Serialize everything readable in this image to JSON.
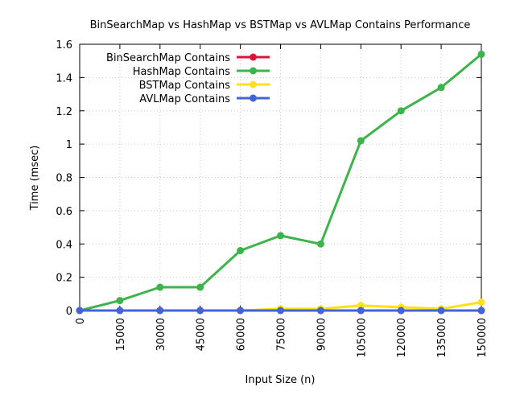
{
  "chart_data": {
    "type": "line",
    "title": "BinSearchMap vs HashMap vs BSTMap vs AVLMap Contains Performance",
    "xlabel": "Input Size (n)",
    "ylabel": "Time (msec)",
    "x": [
      0,
      15000,
      30000,
      45000,
      60000,
      75000,
      90000,
      105000,
      120000,
      135000,
      150000
    ],
    "x_tick_labels": [
      "0",
      "15000",
      "30000",
      "45000",
      "60000",
      "75000",
      "90000",
      "105000",
      "120000",
      "135000",
      "150000"
    ],
    "xlim": [
      0,
      150000
    ],
    "ylim": [
      0,
      1.6
    ],
    "y_ticks": [
      0,
      0.2,
      0.4,
      0.6,
      0.8,
      1,
      1.2,
      1.4,
      1.6
    ],
    "y_tick_labels": [
      "0",
      "0.2",
      "0.4",
      "0.6",
      "0.8",
      "1",
      "1.2",
      "1.4",
      "1.6"
    ],
    "grid": true,
    "legend_position": "top-left",
    "series": [
      {
        "name": "BinSearchMap Contains",
        "color": "#dc143c",
        "values": [
          0,
          0,
          0,
          0,
          0,
          0,
          0,
          0,
          0,
          0,
          0
        ]
      },
      {
        "name": "HashMap Contains",
        "color": "#3cb44b",
        "values": [
          0,
          0.06,
          0.14,
          0.14,
          0.36,
          0.45,
          0.4,
          1.02,
          1.2,
          1.34,
          1.54
        ]
      },
      {
        "name": "BSTMap Contains",
        "color": "#ffe119",
        "values": [
          0,
          0,
          0,
          0,
          0,
          0.01,
          0.01,
          0.03,
          0.02,
          0.01,
          0.05
        ]
      },
      {
        "name": "AVLMap Contains",
        "color": "#4363d8",
        "values": [
          0,
          0,
          0,
          0,
          0,
          0,
          0,
          0,
          0,
          0,
          0
        ]
      }
    ]
  }
}
